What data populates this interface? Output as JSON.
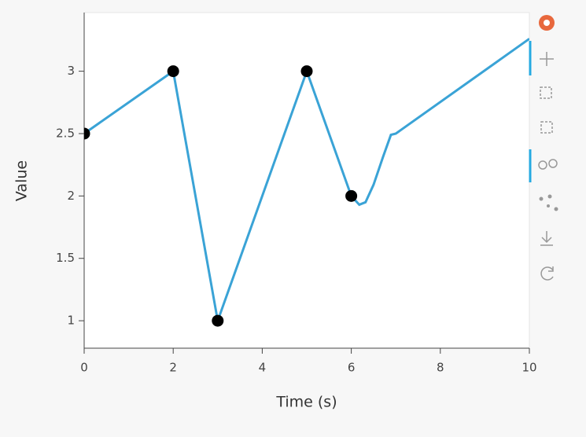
{
  "chart_data": {
    "type": "line",
    "x_label": "Time (s)",
    "y_label": "Value",
    "line": {
      "color": "#3aa3d6",
      "x": [
        0,
        2,
        3,
        5,
        6,
        6.18,
        6.32,
        6.5,
        6.71,
        6.89,
        7,
        10
      ],
      "values": [
        2.5,
        3,
        1,
        3,
        2,
        1.93,
        1.95,
        2.09,
        2.31,
        2.49,
        2.5,
        3.26
      ]
    },
    "points": {
      "color": "#000000",
      "x": [
        0,
        2,
        3,
        5,
        6
      ],
      "values": [
        2.5,
        3,
        1,
        3,
        2
      ]
    },
    "xlim": [
      0,
      10
    ],
    "ylim": [
      0.78,
      3.47
    ],
    "xticks": [
      0,
      2,
      4,
      6,
      8,
      10
    ],
    "yticks": [
      1,
      1.5,
      2,
      2.5,
      3
    ]
  }
}
